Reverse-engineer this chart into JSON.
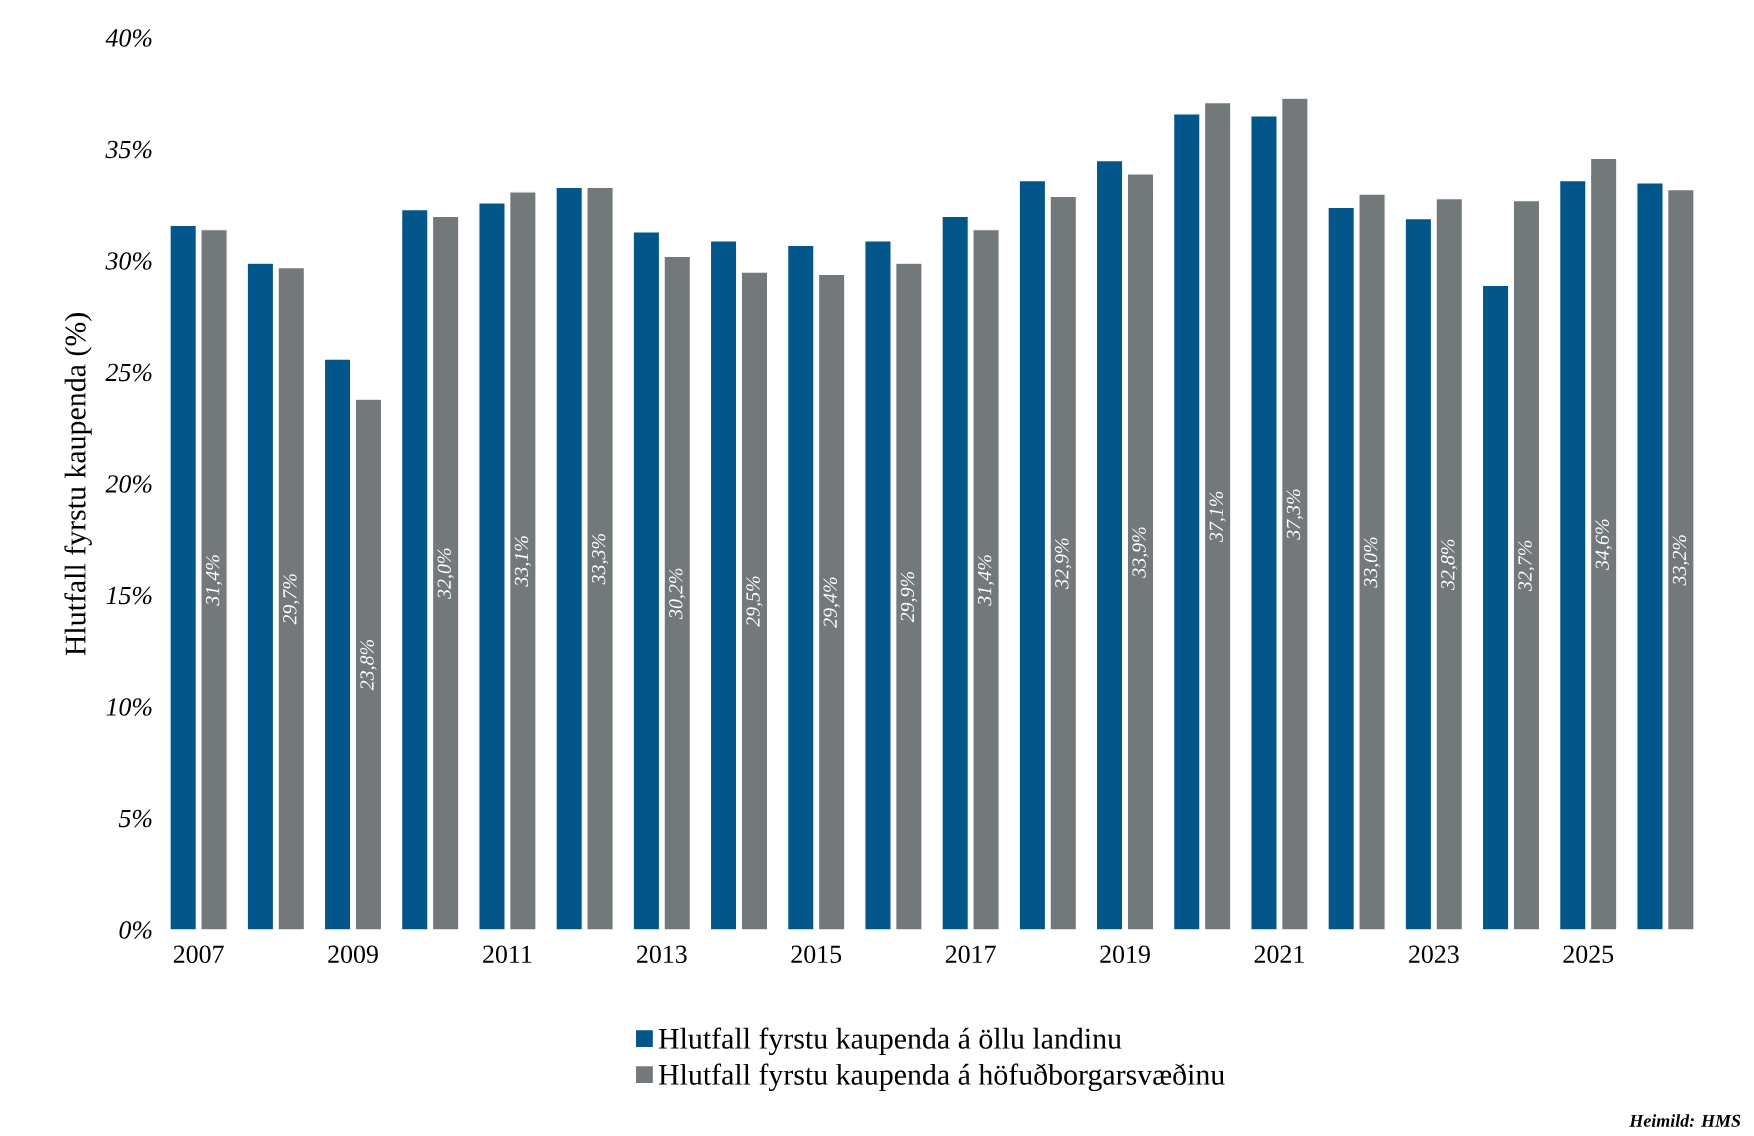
{
  "chart_data": {
    "type": "bar",
    "ylabel": "Hlutfall fyrstu kaupenda (%)",
    "categories": [
      "2007",
      null,
      "2009",
      null,
      "2011",
      null,
      "2013",
      null,
      "2015",
      null,
      "2017",
      null,
      "2019",
      null,
      "2021",
      null,
      "2023",
      null,
      "2025",
      null
    ],
    "series": [
      {
        "name": "Hlutfall fyrstu kaupenda á öllu landinu",
        "color": "#02568a",
        "values": [
          31.6,
          29.9,
          25.6,
          32.3,
          32.6,
          33.3,
          31.3,
          30.9,
          30.7,
          30.9,
          32.0,
          33.6,
          34.5,
          36.6,
          36.5,
          32.4,
          31.9,
          28.9,
          33.6,
          33.5
        ]
      },
      {
        "name": "Hlutfall fyrstu kaupenda á höfuðborgarsvæðinu",
        "color": "#73787b",
        "values": [
          31.4,
          29.7,
          23.8,
          32.0,
          33.1,
          33.3,
          30.2,
          29.5,
          29.4,
          29.9,
          31.4,
          32.9,
          33.9,
          37.1,
          37.3,
          33.0,
          32.8,
          32.7,
          34.6,
          33.2
        ],
        "value_labels": [
          "31,4%",
          "29,7%",
          "23,8%",
          "32,0%",
          "33,1%",
          "33,3%",
          "30,2%",
          "29,5%",
          "29,4%",
          "29,9%",
          "31,4%",
          "32,9%",
          "33,9%",
          "37,1%",
          "37,3%",
          "33,0%",
          "32,8%",
          "32,7%",
          "34,6%",
          "33,2%"
        ]
      }
    ],
    "ylim": [
      0,
      40
    ],
    "yticks": [
      {
        "value": 0,
        "label": "0%"
      },
      {
        "value": 5,
        "label": "5%"
      },
      {
        "value": 10,
        "label": "10%"
      },
      {
        "value": 15,
        "label": "15%"
      },
      {
        "value": 20,
        "label": "20%"
      },
      {
        "value": 25,
        "label": "25%"
      },
      {
        "value": 30,
        "label": "30%"
      },
      {
        "value": 35,
        "label": "35%"
      },
      {
        "value": 40,
        "label": "40%"
      }
    ],
    "legend": "bottom",
    "grid": false,
    "annotations": [
      "**Heimild: HMS**"
    ]
  }
}
